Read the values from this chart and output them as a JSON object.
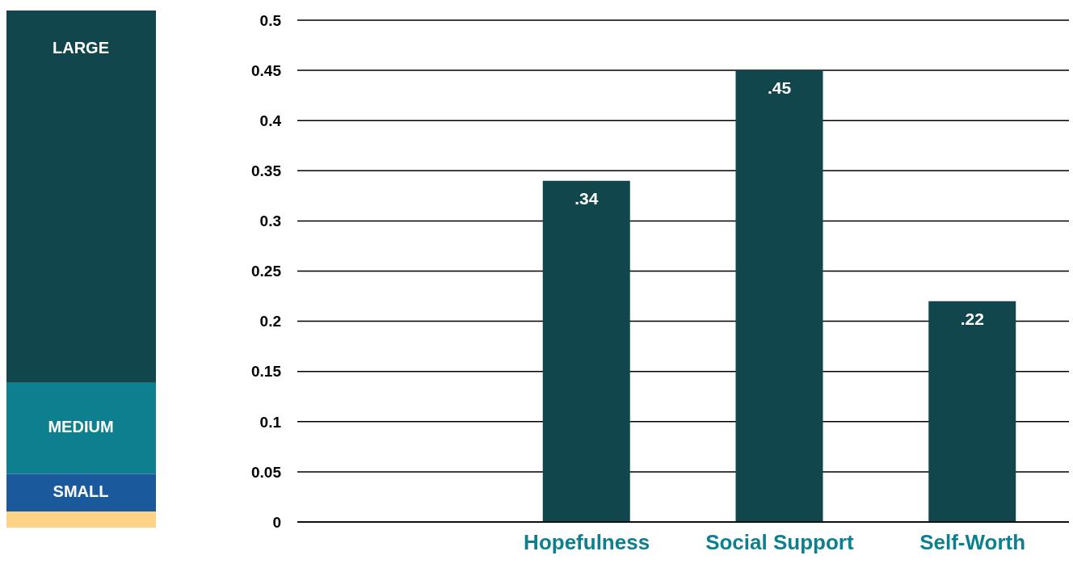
{
  "chart_data": {
    "type": "bar",
    "categories": [
      null,
      "Hopefulness",
      "Social Support",
      "Self-Worth"
    ],
    "values": [
      null,
      0.34,
      0.45,
      0.22
    ],
    "value_labels": [
      null,
      ".34",
      ".45",
      ".22"
    ],
    "color": "#11474c",
    "ylim": [
      0,
      0.5
    ],
    "yticks": [
      0,
      0.05,
      0.1,
      0.15,
      0.2,
      0.25,
      0.3,
      0.35,
      0.4,
      0.45,
      0.5
    ],
    "grid": "y",
    "annotations": [
      "LARGE",
      "MEDIUM",
      "SMALL"
    ]
  }
}
